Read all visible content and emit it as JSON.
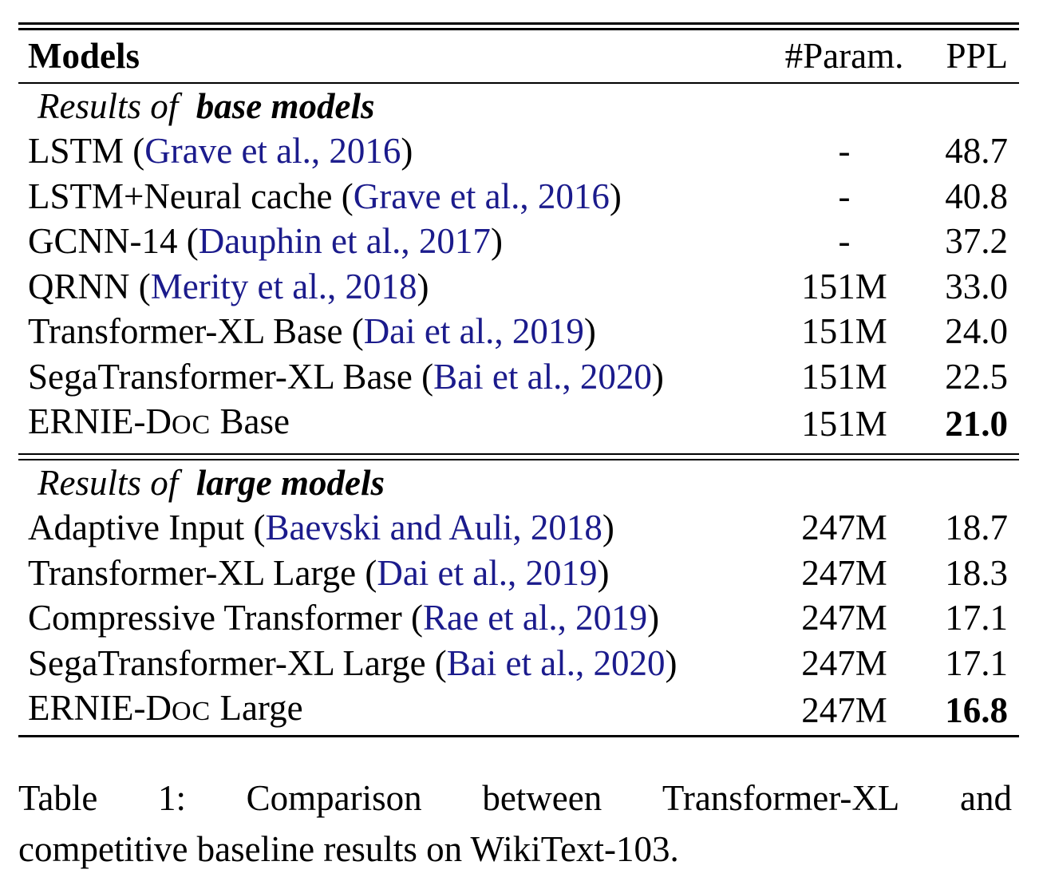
{
  "table": {
    "header": {
      "models": "Models",
      "params": "#Param.",
      "ppl": "PPL"
    },
    "section_base": {
      "prefix": "Results of",
      "emph": "base models"
    },
    "base_rows": [
      {
        "name": "LSTM",
        "cite": "Grave et al., 2016",
        "params": "-",
        "ppl": "48.7"
      },
      {
        "name": "LSTM+Neural cache",
        "cite": "Grave et al., 2016",
        "params": "-",
        "ppl": "40.8"
      },
      {
        "name": "GCNN-14",
        "cite": "Dauphin et al., 2017",
        "params": "-",
        "ppl": "37.2"
      },
      {
        "name": "QRNN",
        "cite": "Merity et al., 2018",
        "params": "151M",
        "ppl": "33.0"
      },
      {
        "name": "Transformer-XL Base",
        "cite": "Dai et al., 2019",
        "params": "151M",
        "ppl": "24.0"
      },
      {
        "name": "SegaTransformer-XL Base",
        "cite": "Bai et al., 2020",
        "params": "151M",
        "ppl": "22.5"
      }
    ],
    "base_best": {
      "name_a": "ERNIE-D",
      "name_b": "OC",
      "name_c": " Base",
      "params": "151M",
      "ppl": "21.0"
    },
    "section_large": {
      "prefix": "Results of",
      "emph": "large models"
    },
    "large_rows": [
      {
        "name": "Adaptive Input",
        "cite": "Baevski and Auli, 2018",
        "params": "247M",
        "ppl": "18.7"
      },
      {
        "name": "Transformer-XL Large",
        "cite": "Dai et al., 2019",
        "params": "247M",
        "ppl": "18.3"
      },
      {
        "name": "Compressive Transformer",
        "cite": "Rae et al., 2019",
        "params": "247M",
        "ppl": "17.1"
      },
      {
        "name": "SegaTransformer-XL Large",
        "cite": "Bai et al., 2020",
        "params": "247M",
        "ppl": "17.1"
      }
    ],
    "large_best": {
      "name_a": "ERNIE-D",
      "name_b": "OC",
      "name_c": " Large",
      "params": "247M",
      "ppl": "16.8"
    }
  },
  "caption": {
    "line1_words": [
      "Table",
      "1:",
      "Comparison",
      "between",
      "Transformer-XL",
      "and"
    ],
    "line2": "competitive baseline results on WikiText-103."
  },
  "colors": {
    "citation": "#1b1b8c",
    "text": "#000000"
  }
}
